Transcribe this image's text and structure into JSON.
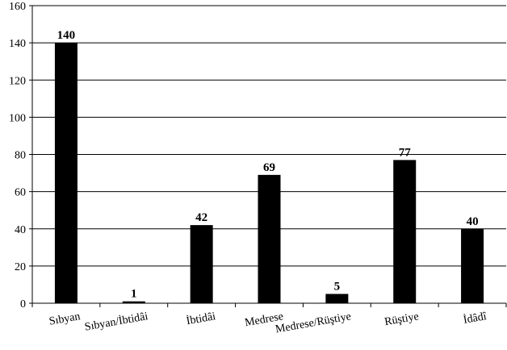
{
  "chart_data": {
    "type": "bar",
    "categories": [
      "Sıbyan",
      "Sıbyan/İbtidâi",
      "İbtidâi",
      "Medrese",
      "Medrese/Rüştiye",
      "Rüştiye",
      "İdâdî"
    ],
    "values": [
      140,
      1,
      42,
      69,
      5,
      77,
      40
    ],
    "color": "#000000",
    "ylim": [
      0,
      160
    ],
    "yticks": [
      0,
      20,
      40,
      60,
      80,
      100,
      120,
      140,
      160
    ],
    "grid": true
  }
}
